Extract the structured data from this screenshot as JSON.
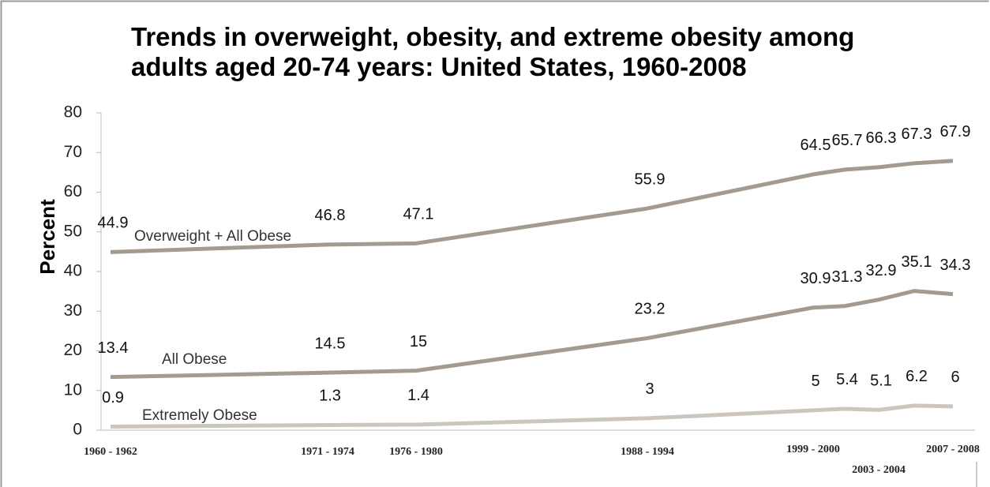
{
  "chart_data": {
    "type": "line",
    "title": "Trends in overweight, obesity, and extreme obesity among adults aged 20-74 years: United States, 1960-2008",
    "y_label": "Percent",
    "categories": [
      "1960 - 1962",
      "1971 - 1974",
      "1976 - 1980",
      "1988 - 1994",
      "1999 - 2000",
      null,
      "2003 - 2004",
      null,
      "2007 - 2008"
    ],
    "series": [
      {
        "name": "Overweight + All Obese",
        "color": "#a39a90",
        "values": [
          44.9,
          46.8,
          47.1,
          55.9,
          64.5,
          65.7,
          66.3,
          67.3,
          67.9
        ]
      },
      {
        "name": "All Obese",
        "color": "#a39a90",
        "values": [
          13.4,
          14.5,
          15,
          23.2,
          30.9,
          31.3,
          32.9,
          35.1,
          34.3
        ]
      },
      {
        "name": "Extremely Obese",
        "color": "#cdc6bf",
        "values": [
          0.9,
          1.3,
          1.4,
          3,
          5,
          5.4,
          5.1,
          6.2,
          6
        ]
      }
    ],
    "ylim": [
      0,
      80
    ],
    "yticks": [
      0,
      10,
      20,
      30,
      40,
      50,
      60,
      70,
      80
    ]
  }
}
